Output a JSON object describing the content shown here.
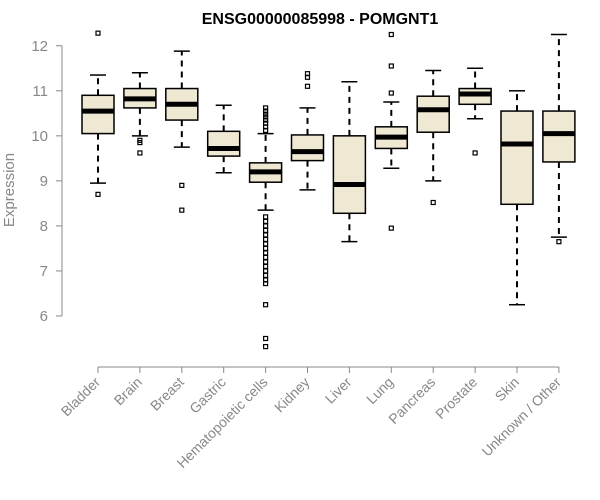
{
  "chart_data": {
    "type": "boxplot",
    "title": "ENSG00000085998 - POMGNT1",
    "xlabel": "",
    "ylabel": "Expression",
    "ylim": [
      5.2,
      12.35
    ],
    "yticks": [
      6,
      7,
      8,
      9,
      10,
      11,
      12
    ],
    "box_fill": "#efe8d2",
    "categories": [
      "Bladder",
      "Brain",
      "Breast",
      "Gastric",
      "Hematopoietic cells",
      "Kidney",
      "Liver",
      "Lung",
      "Pancreas",
      "Prostate",
      "Skin",
      "Unknown / Other"
    ],
    "boxes": [
      {
        "category": "Bladder",
        "lower_whisker": 8.95,
        "q1": 10.05,
        "median": 10.55,
        "q3": 10.9,
        "upper_whisker": 11.35,
        "outliers": [
          12.28,
          8.7
        ]
      },
      {
        "category": "Brain",
        "lower_whisker": 10.0,
        "q1": 10.62,
        "median": 10.82,
        "q3": 11.05,
        "upper_whisker": 11.4,
        "outliers": [
          9.85,
          9.9,
          9.62
        ]
      },
      {
        "category": "Breast",
        "lower_whisker": 9.75,
        "q1": 10.35,
        "median": 10.7,
        "q3": 11.05,
        "upper_whisker": 11.88,
        "outliers": [
          8.9,
          8.35
        ]
      },
      {
        "category": "Gastric",
        "lower_whisker": 9.18,
        "q1": 9.55,
        "median": 9.72,
        "q3": 10.1,
        "upper_whisker": 10.68,
        "outliers": []
      },
      {
        "category": "Hematopoietic cells",
        "lower_whisker": 8.35,
        "q1": 8.97,
        "median": 9.2,
        "q3": 9.4,
        "upper_whisker": 10.05,
        "outliers": [
          10.62,
          10.55,
          10.48,
          10.42,
          10.35,
          10.28,
          10.2,
          10.12,
          8.2,
          8.1,
          8.0,
          7.9,
          7.8,
          7.7,
          7.6,
          7.5,
          7.4,
          7.3,
          7.2,
          7.1,
          7.0,
          6.9,
          6.8,
          6.72,
          6.25,
          5.5,
          5.32
        ]
      },
      {
        "category": "Kidney",
        "lower_whisker": 8.8,
        "q1": 9.45,
        "median": 9.65,
        "q3": 10.02,
        "upper_whisker": 10.62,
        "outliers": [
          11.38,
          11.3,
          11.1
        ]
      },
      {
        "category": "Liver",
        "lower_whisker": 7.65,
        "q1": 8.28,
        "median": 8.92,
        "q3": 10.0,
        "upper_whisker": 11.2,
        "outliers": []
      },
      {
        "category": "Lung",
        "lower_whisker": 9.28,
        "q1": 9.72,
        "median": 9.97,
        "q3": 10.2,
        "upper_whisker": 10.75,
        "outliers": [
          12.25,
          11.55,
          10.95,
          7.95
        ]
      },
      {
        "category": "Pancreas",
        "lower_whisker": 9.0,
        "q1": 10.08,
        "median": 10.58,
        "q3": 10.88,
        "upper_whisker": 11.45,
        "outliers": [
          8.52
        ]
      },
      {
        "category": "Prostate",
        "lower_whisker": 10.38,
        "q1": 10.7,
        "median": 10.93,
        "q3": 11.05,
        "upper_whisker": 11.5,
        "outliers": [
          9.62
        ]
      },
      {
        "category": "Skin",
        "lower_whisker": 6.25,
        "q1": 8.48,
        "median": 9.82,
        "q3": 10.55,
        "upper_whisker": 11.0,
        "outliers": []
      },
      {
        "category": "Unknown / Other",
        "lower_whisker": 7.75,
        "q1": 9.42,
        "median": 10.05,
        "q3": 10.55,
        "upper_whisker": 12.25,
        "outliers": [
          7.65
        ]
      }
    ]
  }
}
